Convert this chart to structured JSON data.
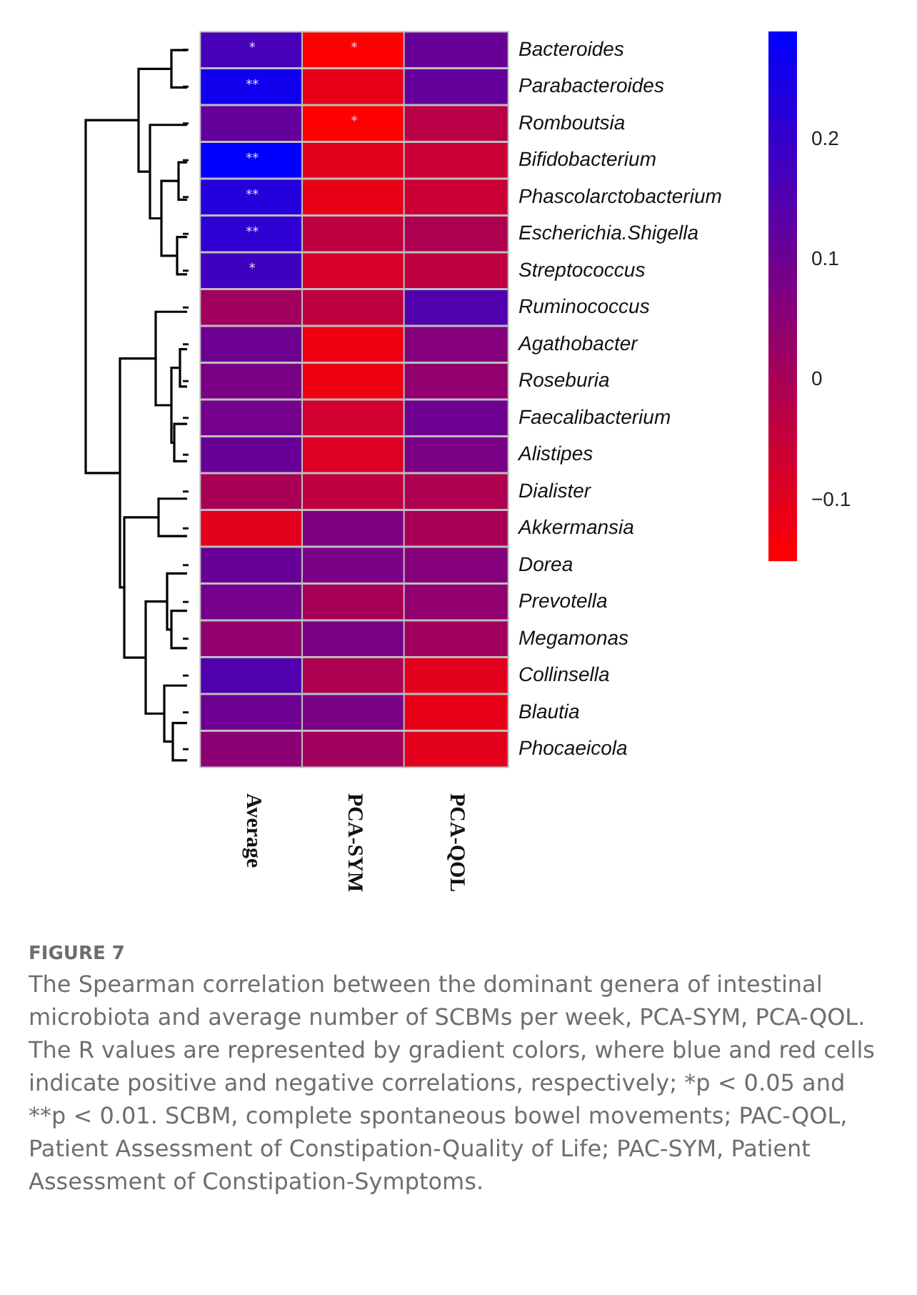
{
  "chart_data": {
    "type": "heatmap",
    "categories": [
      "Average",
      "PCA-SYM",
      "PCA-QOL"
    ],
    "y_categories": [
      "Bacteroides",
      "Parabacteroides",
      "Romboutsia",
      "Bifidobacterium",
      "Phascolarctobacterium",
      "Escherichia.Shigella",
      "Streptococcus",
      "Ruminococcus",
      "Agathobacter",
      "Roseburia",
      "Faecalibacterium",
      "Alistipes",
      "Dialister",
      "Akkermansia",
      "Dorea",
      "Prevotella",
      "Megamonas",
      "Collinsella",
      "Blautia",
      "Phocaeicola"
    ],
    "cells": [
      [
        0.17,
        -0.15,
        0.11
      ],
      [
        0.26,
        -0.11,
        0.12
      ],
      [
        0.12,
        -0.15,
        -0.03
      ],
      [
        0.29,
        -0.1,
        -0.06
      ],
      [
        0.23,
        -0.11,
        -0.06
      ],
      [
        0.21,
        -0.04,
        -0.01
      ],
      [
        0.18,
        -0.08,
        -0.04
      ],
      [
        0.01,
        -0.04,
        0.15
      ],
      [
        0.1,
        -0.12,
        0.06
      ],
      [
        0.08,
        -0.12,
        0.04
      ],
      [
        0.09,
        -0.07,
        0.1
      ],
      [
        0.11,
        -0.09,
        0.08
      ],
      [
        0.0,
        -0.04,
        -0.01
      ],
      [
        -0.1,
        0.07,
        0.0
      ],
      [
        0.11,
        0.08,
        0.06
      ],
      [
        0.09,
        0.0,
        0.04
      ],
      [
        0.04,
        0.08,
        0.01
      ],
      [
        0.15,
        -0.01,
        -0.1
      ],
      [
        0.1,
        0.08,
        -0.11
      ],
      [
        0.05,
        0.01,
        -0.1
      ]
    ],
    "cell_labels": [
      [
        "*",
        "*",
        null
      ],
      [
        "**",
        null,
        null
      ],
      [
        null,
        "*",
        null
      ],
      [
        "**",
        null,
        null
      ],
      [
        "**",
        null,
        null
      ],
      [
        "**",
        null,
        null
      ],
      [
        "*",
        null,
        null
      ],
      [
        null,
        null,
        null
      ],
      [
        null,
        null,
        null
      ],
      [
        null,
        null,
        null
      ],
      [
        null,
        null,
        null
      ],
      [
        null,
        null,
        null
      ],
      [
        null,
        null,
        null
      ],
      [
        null,
        null,
        null
      ],
      [
        null,
        null,
        null
      ],
      [
        null,
        null,
        null
      ],
      [
        null,
        null,
        null
      ],
      [
        null,
        null,
        null
      ],
      [
        null,
        null,
        null
      ],
      [
        null,
        null,
        null
      ]
    ],
    "clim": [
      -0.15,
      0.29
    ],
    "cticks": [
      -0.1,
      0,
      0.1,
      0.2
    ],
    "annotations": [
      "FIGURE 7",
      "The Spearman correlation between the dominant genera of intestinal microbiota and average number of SCBMs per week, PCA-SYM, PCA-QOL. The R values are represented by gradient colors, where blue and red cells indicate positive and negative correlations, respectively; *p < 0.05 and **p < 0.01. SCBM, complete spontaneous bowel movements; PAC-QOL, Patient Assessment of Constipation-Quality of Life; PAC-SYM, Patient Assessment of Constipation-Symptoms."
    ]
  }
}
